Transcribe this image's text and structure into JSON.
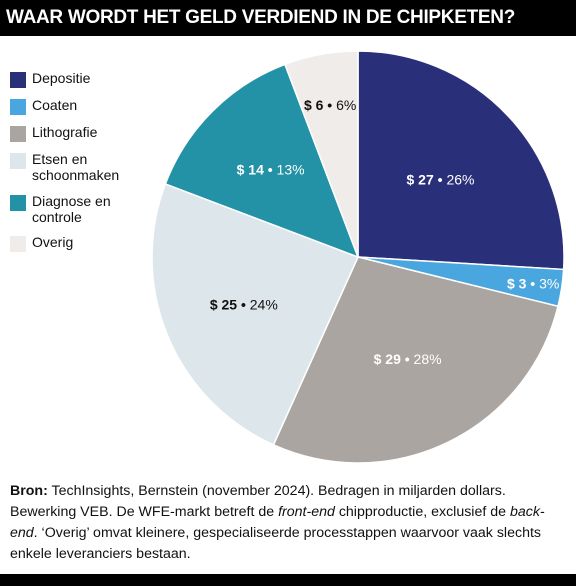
{
  "header": {
    "title": "WAAR WORDT HET GELD VERDIEND IN DE CHIPKETEN?"
  },
  "chart_data": {
    "type": "pie",
    "title": "WAAR WORDT HET GELD VERDIEND IN DE CHIPKETEN?",
    "start": "12 o'clock, clockwise",
    "slices": [
      {
        "label": "Depositie",
        "value": 27,
        "percent": "26%",
        "value_label": "$ 27",
        "color": "#2a2f7a",
        "text_color": "#ffffff"
      },
      {
        "label": "Coaten",
        "value": 3,
        "percent": "3%",
        "value_label": "$ 3",
        "color": "#4aa6df",
        "text_color": "#ffffff"
      },
      {
        "label": "Lithografie",
        "value": 29,
        "percent": "28%",
        "value_label": "$ 29",
        "color": "#aba5a1",
        "text_color": "#ffffff"
      },
      {
        "label": "Etsen en schoonmaken",
        "value": 25,
        "percent": "24%",
        "value_label": "$ 25",
        "color": "#dde6ea",
        "text_color": "#111111"
      },
      {
        "label": "Diagnose en controle",
        "value": 14,
        "percent": "13%",
        "value_label": "$ 14",
        "color": "#2392a6",
        "text_color": "#ffffff"
      },
      {
        "label": "Overig",
        "value": 6,
        "percent": "6%",
        "value_label": "$ 6",
        "color": "#efecea",
        "text_color": "#111111"
      }
    ]
  },
  "legend": {
    "items": [
      {
        "label": "Depositie",
        "color": "#2a2f7a"
      },
      {
        "label": "Coaten",
        "color": "#4aa6df"
      },
      {
        "label": "Lithografie",
        "color": "#aba5a1"
      },
      {
        "label": "Etsen en schoonmaken",
        "color": "#dde6ea"
      },
      {
        "label": "Diagnose en controle",
        "color": "#2392a6"
      },
      {
        "label": "Overig",
        "color": "#efecea"
      }
    ]
  },
  "footer": {
    "source_label": "Bron:",
    "text_1": " TechInsights, Bernstein (november 2024). Bedragen in miljarden dollars. Bewerking VEB. De WFE-markt betreft de ",
    "emph_1": "front-end",
    "text_2": " chipproductie, exclusief de ",
    "emph_2": "back-end",
    "text_3": ". ‘Overig’ omvat kleinere, gespecialiseerde processtappen waarvoor vaak slechts enkele leveranciers bestaan."
  }
}
